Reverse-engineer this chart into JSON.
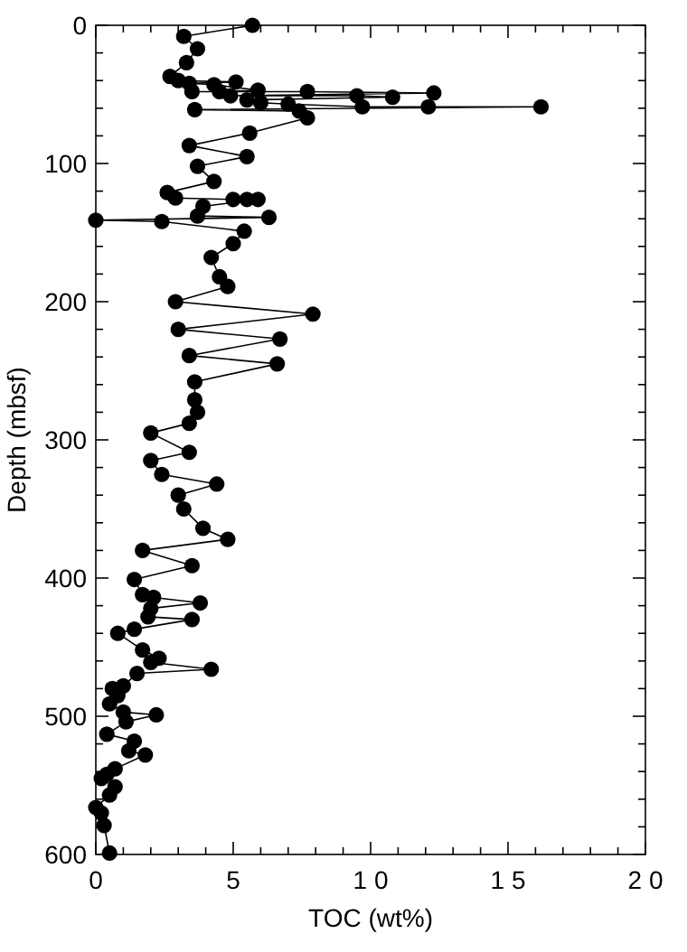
{
  "chart_data": {
    "type": "line",
    "xlabel": "TOC (wt%)",
    "ylabel": "Depth (mbsf)",
    "marker": "circle",
    "grid": false,
    "xlim": [
      0,
      20
    ],
    "xticks": [
      0,
      {
        "value": 1,
        "label": null
      },
      {
        "value": 2,
        "label": null
      },
      {
        "value": 3,
        "label": null
      },
      {
        "value": 4,
        "label": null
      },
      5,
      {
        "value": 6,
        "label": null
      },
      {
        "value": 7,
        "label": null
      },
      {
        "value": 8,
        "label": null
      },
      {
        "value": 9,
        "label": null
      },
      {
        "value": 10,
        "label": "1 0"
      },
      {
        "value": 11,
        "label": null
      },
      {
        "value": 12,
        "label": null
      },
      {
        "value": 13,
        "label": null
      },
      {
        "value": 14,
        "label": null
      },
      {
        "value": 15,
        "label": "1 5"
      },
      {
        "value": 16,
        "label": null
      },
      {
        "value": 17,
        "label": null
      },
      {
        "value": 18,
        "label": null
      },
      {
        "value": 19,
        "label": null
      },
      {
        "value": 20,
        "label": "2 0"
      }
    ],
    "ylim": [
      600,
      0
    ],
    "yticks": [
      0,
      {
        "value": 20,
        "label": null
      },
      {
        "value": 40,
        "label": null
      },
      {
        "value": 60,
        "label": null
      },
      {
        "value": 80,
        "label": null
      },
      100,
      {
        "value": 120,
        "label": null
      },
      {
        "value": 140,
        "label": null
      },
      {
        "value": 160,
        "label": null
      },
      {
        "value": 180,
        "label": null
      },
      200,
      {
        "value": 220,
        "label": null
      },
      {
        "value": 240,
        "label": null
      },
      {
        "value": 260,
        "label": null
      },
      {
        "value": 280,
        "label": null
      },
      300,
      {
        "value": 320,
        "label": null
      },
      {
        "value": 340,
        "label": null
      },
      {
        "value": 360,
        "label": null
      },
      {
        "value": 380,
        "label": null
      },
      400,
      {
        "value": 420,
        "label": null
      },
      {
        "value": 440,
        "label": null
      },
      {
        "value": 460,
        "label": null
      },
      {
        "value": 480,
        "label": null
      },
      500,
      {
        "value": 520,
        "label": null
      },
      {
        "value": 540,
        "label": null
      },
      {
        "value": 560,
        "label": null
      },
      {
        "value": 580,
        "label": null
      },
      600
    ],
    "series": [
      {
        "color": "#000000",
        "x": [
          5.7,
          3.2,
          3.7,
          3.3,
          2.7,
          3.0,
          5.1,
          3.4,
          4.3,
          5.9,
          4.5,
          3.5,
          7.7,
          12.3,
          4.9,
          9.5,
          10.8,
          5.5,
          6.0,
          7.0,
          9.7,
          12.1,
          16.2,
          3.6,
          7.4,
          7.7,
          5.6,
          3.4,
          5.5,
          3.7,
          4.3,
          2.6,
          2.9,
          5.0,
          5.5,
          5.9,
          3.9,
          3.7,
          6.3,
          0,
          2.4,
          5.4,
          5.0,
          4.2,
          4.5,
          4.8,
          2.9,
          7.9,
          3.0,
          6.7,
          3.4,
          6.6,
          3.6,
          3.6,
          3.7,
          3.4,
          2.0,
          3.4,
          2.0,
          2.4,
          4.4,
          3.0,
          3.2,
          3.9,
          4.8,
          1.7,
          3.5,
          1.4,
          1.7,
          2.1,
          3.8,
          2.0,
          1.9,
          3.5,
          1.4,
          0.8,
          1.7,
          2.3,
          2.0,
          4.2,
          1.5,
          1.0,
          0.6,
          0.8,
          0.5,
          1.0,
          2.2,
          1.1,
          0.4,
          1.4,
          1.2,
          1.8,
          0.7,
          0.4,
          0.2,
          0.7,
          0.5,
          0.0,
          0.2,
          0.3,
          0.5
        ],
        "values": [
          0,
          8,
          17,
          27,
          37,
          40,
          41,
          42,
          43,
          47,
          48,
          48,
          48,
          49,
          51,
          51,
          52,
          54,
          56,
          57,
          59,
          59,
          59,
          61,
          62,
          67,
          78,
          87,
          95,
          102,
          113,
          121,
          125,
          126,
          126,
          126,
          131,
          138,
          139,
          141,
          142,
          149,
          158,
          168,
          182,
          189,
          200,
          209,
          220,
          227,
          239,
          245,
          258,
          271,
          280,
          288,
          295,
          309,
          315,
          325,
          332,
          340,
          350,
          364,
          372,
          380,
          391,
          401,
          412,
          414,
          418,
          422,
          428,
          430,
          437,
          440,
          452,
          458,
          461,
          466,
          469,
          478,
          480,
          485,
          491,
          497,
          499,
          504,
          513,
          518,
          525,
          528,
          538,
          542,
          545,
          551,
          557,
          566,
          570,
          579,
          599
        ]
      }
    ]
  }
}
